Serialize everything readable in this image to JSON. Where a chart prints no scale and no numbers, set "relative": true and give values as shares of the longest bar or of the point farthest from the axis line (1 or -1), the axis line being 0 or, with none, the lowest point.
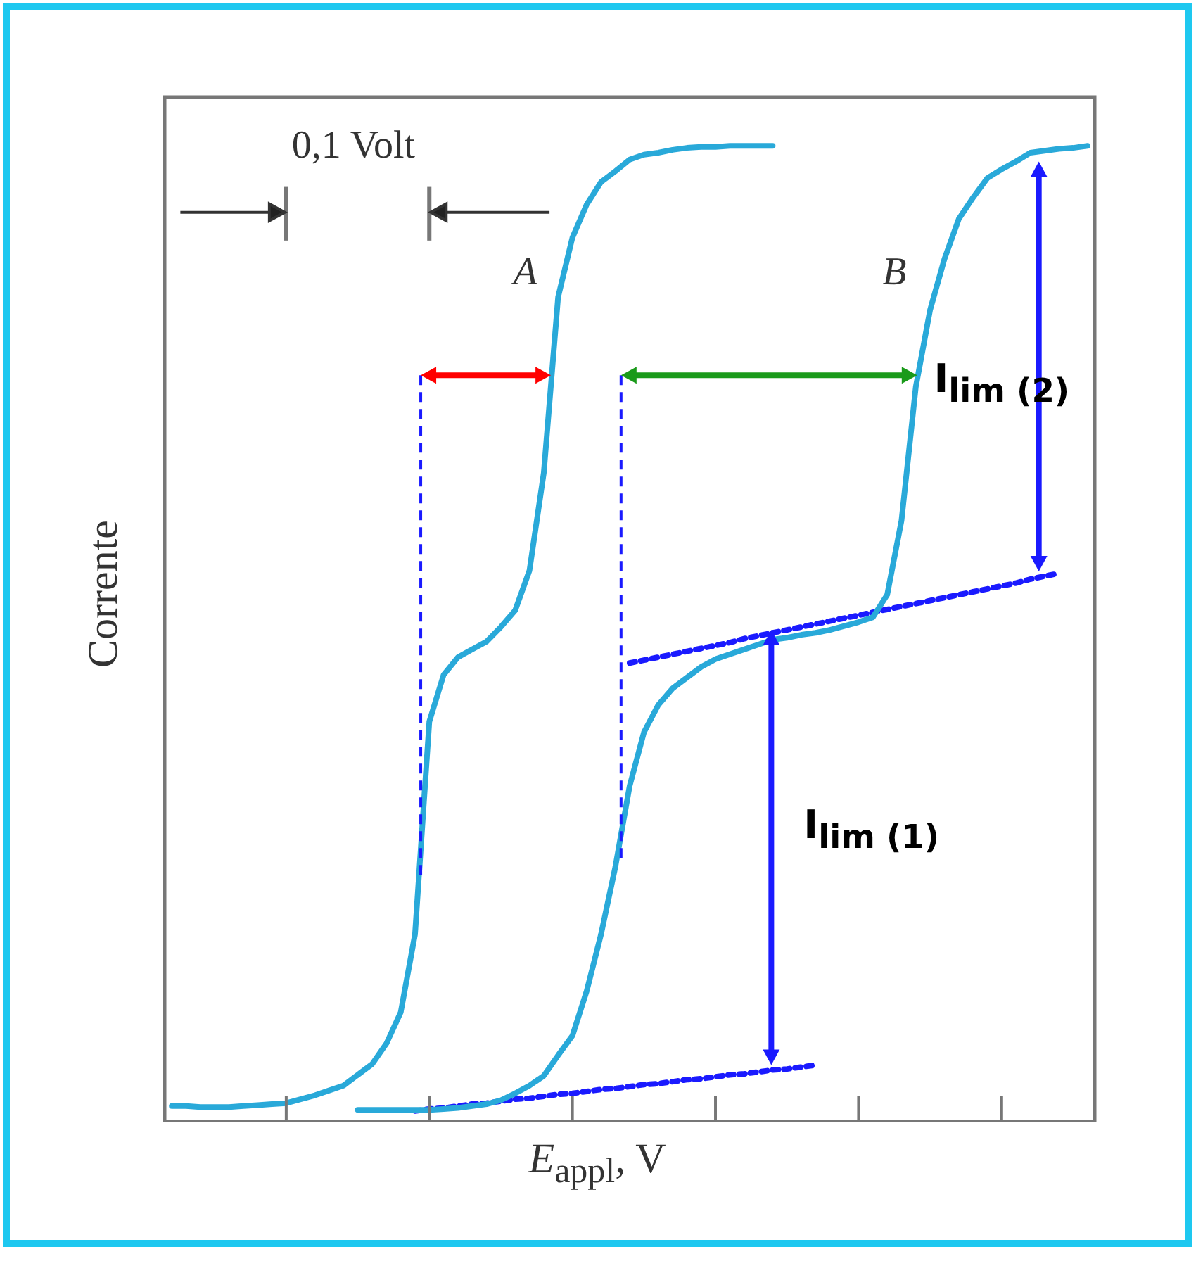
{
  "chart_data": {
    "type": "line",
    "relative": true,
    "xlabel": "E$_{appl}$, V",
    "ylabel": "Corrente",
    "categories": [
      null,
      null,
      null,
      null,
      null,
      null,
      null,
      null,
      null,
      null,
      null,
      null,
      null,
      null,
      null,
      null,
      null,
      null,
      null,
      null,
      null,
      null,
      null,
      null,
      null,
      null,
      null,
      null,
      null,
      null,
      null,
      null,
      null,
      null,
      null,
      null,
      null,
      null,
      null,
      null,
      null,
      null,
      null,
      null,
      null,
      null,
      null,
      null,
      null,
      null,
      null,
      null,
      null,
      null,
      null,
      null,
      null,
      null,
      null,
      null,
      null,
      null,
      null,
      null,
      null
    ],
    "tick_labels": false,
    "legend": false,
    "grid": false,
    "marker": "none",
    "series": [
      {
        "color": "#29a9d9",
        "line_style": "solid",
        "values": [
          0.016,
          0.016,
          0.015,
          0.015,
          0.015,
          0.016,
          0.017,
          0.018,
          0.019,
          0.023,
          0.027,
          0.032,
          0.037,
          0.048,
          0.059,
          0.08,
          0.112,
          0.192,
          0.41,
          0.458,
          0.476,
          0.484,
          0.492,
          0.507,
          0.524,
          0.565,
          0.665,
          0.845,
          0.906,
          0.94,
          0.963,
          0.974,
          0.986,
          0.991,
          0.993,
          0.996,
          0.998,
          0.999,
          0.999,
          1,
          1,
          1,
          1,
          null,
          null,
          null,
          null,
          null,
          null,
          null,
          null,
          null,
          null,
          null,
          null,
          null,
          null,
          null,
          null,
          null,
          null,
          null,
          null,
          null,
          null
        ]
      },
      {
        "color": "#29a9d9",
        "line_style": "solid",
        "values": [
          null,
          null,
          null,
          null,
          null,
          null,
          null,
          null,
          null,
          null,
          null,
          null,
          null,
          0.012,
          0.012,
          0.012,
          0.012,
          0.012,
          0.012,
          0.013,
          0.014,
          0.016,
          0.018,
          0.022,
          0.029,
          0.037,
          0.047,
          0.068,
          0.088,
          0.134,
          0.192,
          0.261,
          0.344,
          0.399,
          0.427,
          0.444,
          0.455,
          0.466,
          0.474,
          0.479,
          0.484,
          0.489,
          0.494,
          0.496,
          0.499,
          0.501,
          0.504,
          0.508,
          0.512,
          0.517,
          0.54,
          0.616,
          0.753,
          0.832,
          0.884,
          0.925,
          0.947,
          0.967,
          0.976,
          0.984,
          0.993,
          0.995,
          0.997,
          0.998,
          1
        ]
      },
      {
        "color": "#1a1aff",
        "line_style": "dotted",
        "values": [
          null,
          null,
          null,
          null,
          null,
          null,
          null,
          null,
          null,
          null,
          null,
          null,
          null,
          null,
          null,
          null,
          null,
          0.011,
          0.013,
          0.014,
          0.016,
          0.018,
          0.019,
          0.021,
          0.023,
          0.024,
          0.026,
          0.028,
          0.029,
          0.031,
          0.033,
          0.034,
          0.036,
          0.038,
          0.039,
          0.041,
          0.043,
          0.044,
          0.046,
          0.048,
          0.049,
          0.051,
          0.053,
          0.054,
          0.056,
          0.058,
          null,
          null,
          null,
          null,
          null,
          null,
          null,
          null,
          null,
          null,
          null,
          null,
          null,
          null,
          null,
          null,
          null,
          null,
          null
        ]
      },
      {
        "color": "#1a1aff",
        "line_style": "dotted",
        "values": [
          null,
          null,
          null,
          null,
          null,
          null,
          null,
          null,
          null,
          null,
          null,
          null,
          null,
          null,
          null,
          null,
          null,
          null,
          null,
          null,
          null,
          null,
          null,
          null,
          null,
          null,
          null,
          null,
          null,
          null,
          null,
          null,
          0.47,
          0.473,
          0.476,
          0.479,
          0.482,
          0.485,
          0.488,
          0.491,
          0.495,
          0.498,
          0.501,
          0.504,
          0.507,
          0.51,
          0.513,
          0.516,
          0.519,
          0.522,
          0.525,
          0.528,
          0.531,
          0.534,
          0.537,
          0.54,
          0.543,
          0.546,
          0.549,
          0.552,
          0.556,
          0.559,
          0.562,
          null,
          null
        ]
      }
    ],
    "annotations": [
      "0,1 Volt",
      "A",
      "B",
      "I$_{lim (2)}$",
      "I$_{lim (1)}$"
    ]
  }
}
